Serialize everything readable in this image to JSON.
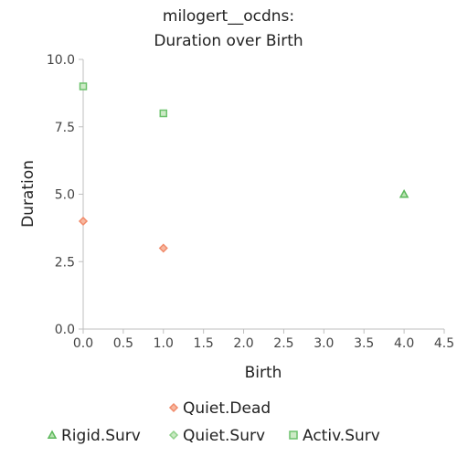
{
  "chart_data": {
    "type": "scatter",
    "title_lines": [
      "milogert__ocdns:",
      "Duration over Birth"
    ],
    "xlabel": "Birth",
    "ylabel": "Duration",
    "xlim": [
      0,
      4.5
    ],
    "ylim": [
      0,
      10
    ],
    "x_ticks": [
      "0.0",
      "0.5",
      "1.0",
      "1.5",
      "2.0",
      "2.5",
      "3.0",
      "3.5",
      "4.0",
      "4.5"
    ],
    "y_ticks": [
      "0.0",
      "2.5",
      "5.0",
      "7.5",
      "10.0"
    ],
    "grid": false,
    "legend_position": "bottom",
    "series": [
      {
        "name": "Quiet.Dead",
        "marker": "diamond",
        "fill": "#f7b8a0",
        "stroke": "#f08a6a",
        "points": [
          [
            0.0,
            4.0
          ],
          [
            1.0,
            3.0
          ]
        ]
      },
      {
        "name": "Rigid.Surv",
        "marker": "triangle",
        "fill": "#b9e2b1",
        "stroke": "#5cb85c",
        "points": [
          [
            4.0,
            5.0
          ]
        ]
      },
      {
        "name": "Quiet.Surv",
        "marker": "diamond",
        "fill": "#c9e8c2",
        "stroke": "#8fd18a",
        "points": []
      },
      {
        "name": "Activ.Surv",
        "marker": "square",
        "fill": "#cdeac6",
        "stroke": "#6cc16c",
        "points": [
          [
            0.0,
            9.0
          ],
          [
            1.0,
            8.0
          ]
        ]
      }
    ]
  }
}
